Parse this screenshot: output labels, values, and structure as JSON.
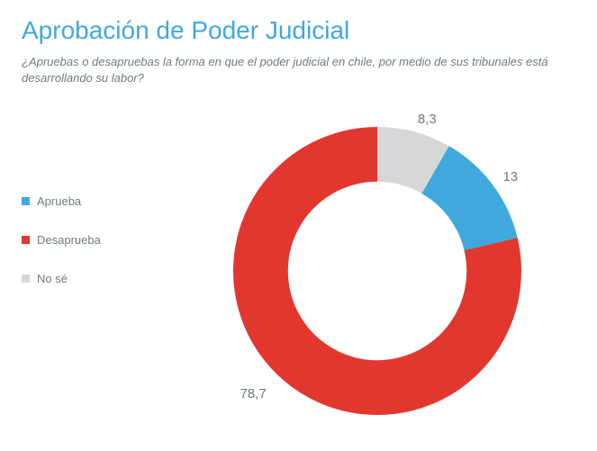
{
  "title": "Aprobación de Poder Judicial",
  "title_color": "#3fa9dd",
  "subtitle": "¿Apruebas o desapruebas la forma en que el poder judicial en chile, por medio de sus tribunales está desarrollando su labor?",
  "subtitle_color": "#6f7a7f",
  "legend_text_color": "#6f7a7f",
  "chart": {
    "type": "donut",
    "background_color": "#ffffff",
    "inner_radius_ratio": 0.62,
    "start_angle_deg": 0,
    "slices": [
      {
        "key": "no_se",
        "label": "No sé",
        "value": 8.3,
        "display": "8,3",
        "color": "#d7d7d7",
        "label_color": "#6f7a7f"
      },
      {
        "key": "aprueba",
        "label": "Aprueba",
        "value": 13,
        "display": "13",
        "color": "#3fa9dd",
        "label_color": "#6f7a7f"
      },
      {
        "key": "desaprueba",
        "label": "Desaprueba",
        "value": 78.7,
        "display": "78,7",
        "color": "#e2372f",
        "label_color": "#6f7a7f"
      }
    ],
    "legend_order": [
      "aprueba",
      "desaprueba",
      "no_se"
    ]
  }
}
